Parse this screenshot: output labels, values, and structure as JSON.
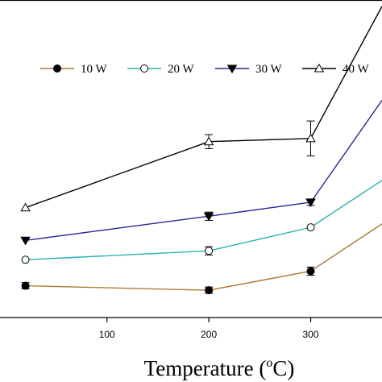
{
  "chart_data": {
    "type": "line",
    "xlabel": "Temperature (°C)",
    "xlabel_parts": {
      "pre": "Temperature (",
      "sup": "o",
      "post": "C)"
    },
    "xticks": [
      100,
      200,
      300
    ],
    "xlim": [
      -5,
      370
    ],
    "ylim": [
      0,
      100
    ],
    "legend_placement": "top",
    "series": [
      {
        "name": "10 W",
        "marker": "filled-circle",
        "color": "#b07a36",
        "x": [
          20,
          200,
          300,
          370
        ],
        "y": [
          10,
          8.6,
          14.6,
          29.5
        ],
        "err": [
          1.0,
          1.0,
          1.3,
          0
        ]
      },
      {
        "name": "20 W",
        "marker": "open-circle",
        "color": "#2ab0b3",
        "x": [
          20,
          200,
          300,
          370
        ],
        "y": [
          18.2,
          21,
          28.4,
          43.2
        ],
        "err": [
          0,
          1.3,
          0,
          0
        ]
      },
      {
        "name": "30 W",
        "marker": "filled-triangle-down",
        "color": "#262693",
        "x": [
          20,
          200,
          300,
          370
        ],
        "y": [
          24.3,
          31.9,
          36.3,
          68.4
        ],
        "err": [
          0,
          1.3,
          1.0,
          0
        ]
      },
      {
        "name": "40 W",
        "marker": "open-triangle-up",
        "color": "#000000",
        "x": [
          20,
          200,
          300,
          370
        ],
        "y": [
          34.6,
          55.4,
          56.4,
          98
        ],
        "err": [
          0,
          2.2,
          5.5,
          0
        ]
      }
    ]
  }
}
